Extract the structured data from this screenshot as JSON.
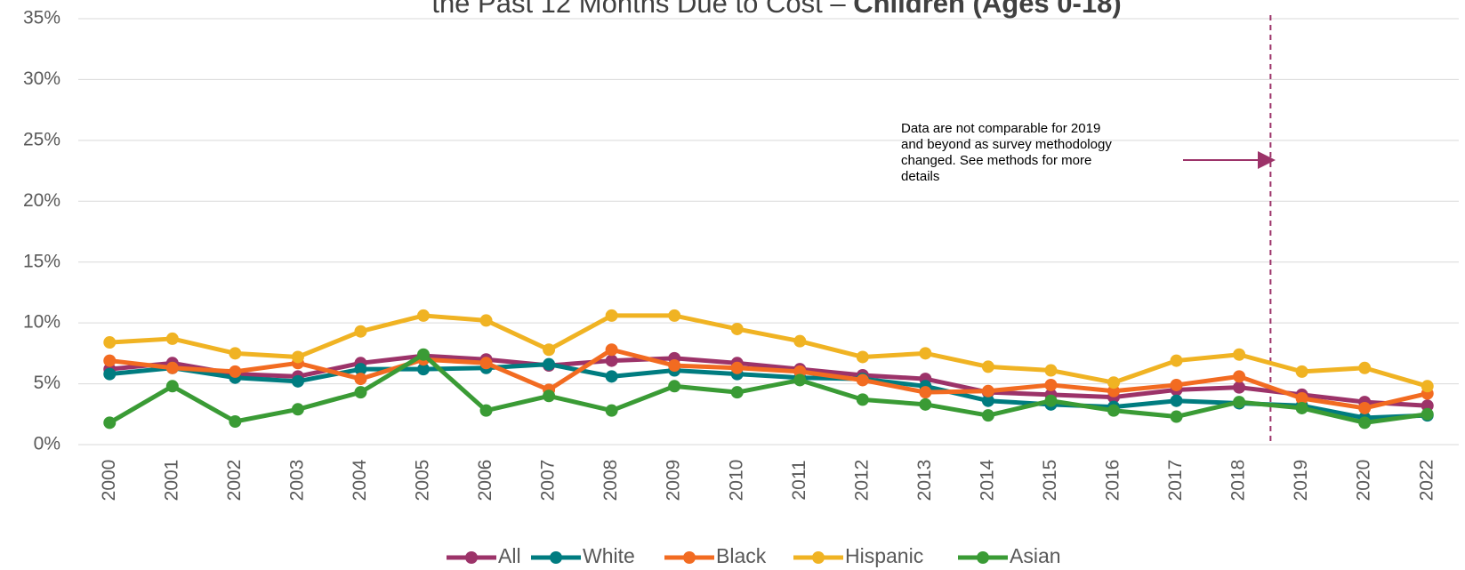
{
  "chart_data": {
    "type": "line",
    "title": "the Past 12 Months Due to Cost – ",
    "title_bold": "Children (Ages 0-18)",
    "categories": [
      "2000",
      "2001",
      "2002",
      "2003",
      "2004",
      "2005",
      "2006",
      "2007",
      "2008",
      "2009",
      "2010",
      "2011",
      "2012",
      "2013",
      "2014",
      "2015",
      "2016",
      "2017",
      "2018",
      "2019",
      "2020",
      "2022"
    ],
    "series": [
      {
        "name": "All",
        "color": "#9c3369",
        "values": [
          6.2,
          6.7,
          5.8,
          5.6,
          6.7,
          7.3,
          7.0,
          6.5,
          6.9,
          7.1,
          6.7,
          6.2,
          5.7,
          5.4,
          4.3,
          4.1,
          3.9,
          4.5,
          4.7,
          4.1,
          3.5,
          3.2
        ]
      },
      {
        "name": "White",
        "color": "#007c80",
        "values": [
          5.8,
          6.3,
          5.5,
          5.2,
          6.2,
          6.2,
          6.3,
          6.6,
          5.6,
          6.1,
          5.8,
          5.5,
          5.4,
          4.8,
          3.6,
          3.3,
          3.1,
          3.6,
          3.4,
          3.2,
          2.2,
          2.4
        ]
      },
      {
        "name": "Black",
        "color": "#f26b21",
        "values": [
          6.9,
          6.3,
          6.0,
          6.7,
          5.4,
          7.0,
          6.7,
          4.5,
          7.8,
          6.5,
          6.3,
          6.0,
          5.3,
          4.3,
          4.4,
          4.9,
          4.4,
          4.9,
          5.6,
          3.8,
          3.0,
          4.2
        ]
      },
      {
        "name": "Hispanic",
        "color": "#f0b323",
        "values": [
          8.4,
          8.7,
          7.5,
          7.2,
          9.3,
          10.6,
          10.2,
          7.8,
          10.6,
          10.6,
          9.5,
          8.5,
          7.2,
          7.5,
          6.4,
          6.1,
          5.1,
          6.9,
          7.4,
          6.0,
          6.3,
          4.8
        ]
      },
      {
        "name": "Asian",
        "color": "#3a9b35",
        "values": [
          1.8,
          4.8,
          1.9,
          2.9,
          4.3,
          7.4,
          2.8,
          4.0,
          2.8,
          4.8,
          4.3,
          5.3,
          3.7,
          3.3,
          2.4,
          3.6,
          2.8,
          2.3,
          3.5,
          3.0,
          1.8,
          2.5
        ]
      }
    ],
    "ylim": [
      0,
      35
    ],
    "yticks": [
      {
        "value": 0,
        "label": "0%"
      },
      {
        "value": 5,
        "label": "5%"
      },
      {
        "value": 10,
        "label": "10%"
      },
      {
        "value": 15,
        "label": "15%"
      },
      {
        "value": 20,
        "label": "20%"
      },
      {
        "value": 25,
        "label": "25%"
      },
      {
        "value": 30,
        "label": "30%"
      },
      {
        "value": 35,
        "label": "35%"
      }
    ],
    "grid": true,
    "annotation": [
      "Data are not comparable for 2019",
      "and beyond as survey methodology",
      "changed. See methods for more",
      "details"
    ]
  }
}
